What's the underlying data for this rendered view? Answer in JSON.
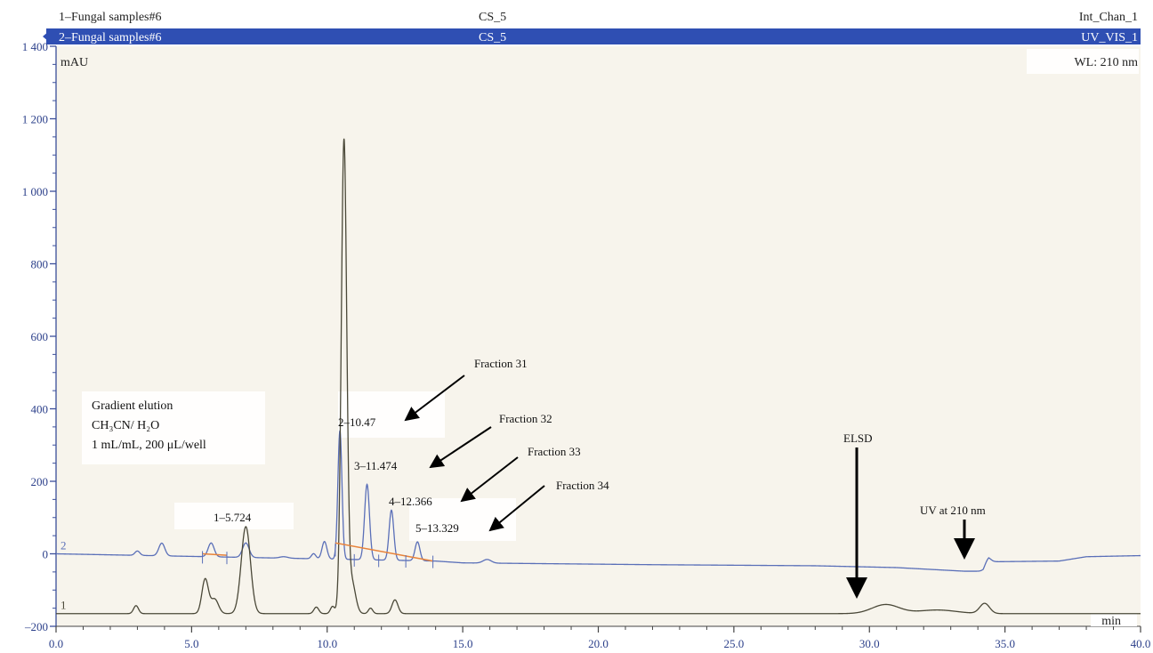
{
  "chart_data": {
    "type": "line",
    "header": {
      "chan1_label": "1–Fungal samples#6",
      "chan2_label": "2–Fungal samples#6",
      "chan1_center": "CS_5",
      "chan2_center": "CS_5",
      "chan1_right": "Int_Chan_1",
      "chan2_right": "UV_VIS_1",
      "wavelength": "WL: 210 nm"
    },
    "ylabel": "mAU",
    "xlabel": "min",
    "xlim": [
      0,
      40
    ],
    "ylim": [
      -200,
      1400
    ],
    "yticks": [
      -200,
      0,
      200,
      400,
      600,
      800,
      1000,
      1200,
      1400
    ],
    "ytick_labels": [
      "–200",
      "0",
      "200",
      "400",
      "600",
      "800",
      "1 000",
      "1 200",
      "1 400"
    ],
    "xticks": [
      0,
      5,
      10,
      15,
      20,
      25,
      30,
      35,
      40
    ],
    "xtick_labels": [
      "0.0",
      "5.0",
      "10.0",
      "15.0",
      "20.0",
      "25.0",
      "30.0",
      "35.0",
      "40.0"
    ],
    "colors": {
      "uv_trace": "#5a6fb8",
      "elsd_trace": "#4a4838",
      "baseline": "#e8833a",
      "header_bar": "#2f4fb3",
      "plot_bg": "#f7f4ec",
      "axis": "#3b4f9a"
    },
    "series": [
      {
        "id": "2",
        "label": "2",
        "baseline": 0,
        "drift": [
          [
            0,
            0
          ],
          [
            14,
            -20
          ],
          [
            15,
            -25
          ],
          [
            22,
            -30
          ],
          [
            28,
            -33
          ],
          [
            31,
            -38
          ],
          [
            33.5,
            -48
          ],
          [
            34.2,
            -48
          ],
          [
            34.4,
            -22
          ],
          [
            37,
            -20
          ],
          [
            38,
            -8
          ],
          [
            40,
            -5
          ]
        ],
        "peaks": [
          [
            3.0,
            12,
            0.09
          ],
          [
            3.9,
            35,
            0.11
          ],
          [
            5.72,
            38,
            0.11
          ],
          [
            7.0,
            40,
            0.12
          ],
          [
            8.4,
            4,
            0.15
          ],
          [
            9.5,
            14,
            0.08
          ],
          [
            9.9,
            48,
            0.09
          ],
          [
            10.47,
            355,
            0.075
          ],
          [
            11.47,
            208,
            0.09
          ],
          [
            12.37,
            138,
            0.085
          ],
          [
            13.33,
            52,
            0.09
          ],
          [
            15.9,
            10,
            0.15
          ],
          [
            34.35,
            12,
            0.12
          ]
        ]
      },
      {
        "id": "1",
        "label": "1",
        "baseline": -165,
        "drift": [
          [
            0,
            0
          ],
          [
            40,
            0
          ]
        ],
        "peaks": [
          [
            2.95,
            22,
            0.09
          ],
          [
            5.5,
            95,
            0.12
          ],
          [
            5.85,
            40,
            0.14
          ],
          [
            7.0,
            240,
            0.17
          ],
          [
            9.6,
            18,
            0.09
          ],
          [
            10.2,
            20,
            0.08
          ],
          [
            10.62,
            1298,
            0.1
          ],
          [
            10.9,
            90,
            0.14
          ],
          [
            11.6,
            15,
            0.08
          ],
          [
            12.5,
            38,
            0.11
          ],
          [
            30.6,
            25,
            0.5
          ],
          [
            32.5,
            10,
            0.7
          ],
          [
            34.25,
            28,
            0.18
          ]
        ]
      }
    ],
    "integration_baseline": {
      "from": [
        10.3,
        30
      ],
      "to": [
        13.9,
        -20
      ],
      "early": [
        [
          5.4,
          0
        ],
        [
          6.3,
          -4
        ]
      ]
    },
    "peak_labels": [
      {
        "text": "1–5.724",
        "x": 5.724,
        "y": 82
      },
      {
        "text": "2–10.47",
        "x": 10.47,
        "y": 375
      },
      {
        "text": "3–11.474",
        "x": 11.474,
        "y": 225
      },
      {
        "text": "4–12.366",
        "x": 12.366,
        "y": 152
      },
      {
        "text": "5–13.329",
        "x": 13.329,
        "y": 65
      }
    ],
    "fractions": [
      {
        "text": "Fraction 31"
      },
      {
        "text": "Fraction 32"
      },
      {
        "text": "Fraction 33"
      },
      {
        "text": "Fraction 34"
      }
    ],
    "conditions": [
      "Gradient elution",
      "CH₃CN/ H₂O",
      "1 mL/mL, 200 μL/well"
    ],
    "annotations": {
      "elsd": "ELSD",
      "uv": "UV at 210 nm"
    }
  }
}
